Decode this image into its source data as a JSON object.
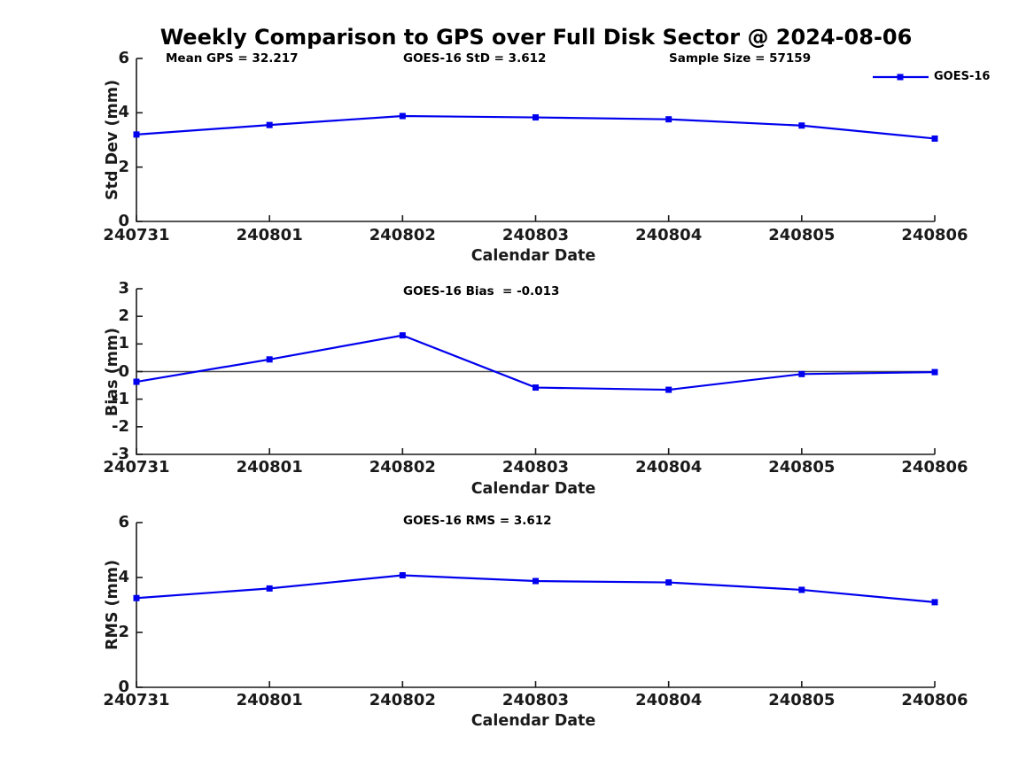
{
  "figure": {
    "title": "Weekly Comparison to GPS over Full Disk Sector @ 2024-08-06",
    "stats": {
      "mean_gps": "Mean GPS = 32.217",
      "std": "GOES-16 StD = 3.612",
      "sample_size": "Sample Size = 57159"
    },
    "legend": {
      "label": "GOES-16",
      "line_color": "#0000ee"
    },
    "colors": {
      "axis": "#1a1a1a",
      "zero_line": "#4d4d4d",
      "background": "#ffffff"
    }
  },
  "chart_data": [
    {
      "type": "line",
      "title": "",
      "ylabel": "Std Dev (mm)",
      "xlabel": "Calendar Date",
      "categories": [
        "240731",
        "240801",
        "240802",
        "240803",
        "240804",
        "240805",
        "240806"
      ],
      "series": [
        {
          "name": "GOES-16",
          "values": [
            3.2,
            3.55,
            3.88,
            3.83,
            3.76,
            3.53,
            3.05
          ]
        }
      ],
      "ylim": [
        0,
        6
      ],
      "yticks": [
        0,
        2,
        4,
        6
      ],
      "grid": false,
      "zero_line": false,
      "legend_position": "top-right",
      "annotations": [
        "Mean GPS = 32.217",
        "GOES-16 StD = 3.612",
        "Sample Size = 57159"
      ]
    },
    {
      "type": "line",
      "title": "GOES-16 Bias  = -0.013",
      "ylabel": "Bias (mm)",
      "xlabel": "Calendar Date",
      "categories": [
        "240731",
        "240801",
        "240802",
        "240803",
        "240804",
        "240805",
        "240806"
      ],
      "series": [
        {
          "name": "GOES-16",
          "values": [
            -0.37,
            0.44,
            1.31,
            -0.58,
            -0.66,
            -0.09,
            -0.02
          ]
        }
      ],
      "ylim": [
        -3,
        3
      ],
      "yticks": [
        3,
        2,
        1,
        0,
        -1,
        -2,
        -3
      ],
      "grid": false,
      "zero_line": true,
      "legend_position": "none",
      "annotations": []
    },
    {
      "type": "line",
      "title": "GOES-16 RMS = 3.612",
      "ylabel": "RMS (mm)",
      "xlabel": "Calendar Date",
      "categories": [
        "240731",
        "240801",
        "240802",
        "240803",
        "240804",
        "240805",
        "240806"
      ],
      "series": [
        {
          "name": "GOES-16",
          "values": [
            3.25,
            3.6,
            4.08,
            3.87,
            3.82,
            3.55,
            3.1
          ]
        }
      ],
      "ylim": [
        0,
        6
      ],
      "yticks": [
        0,
        2,
        4,
        6
      ],
      "grid": false,
      "zero_line": false,
      "legend_position": "none",
      "annotations": []
    }
  ]
}
